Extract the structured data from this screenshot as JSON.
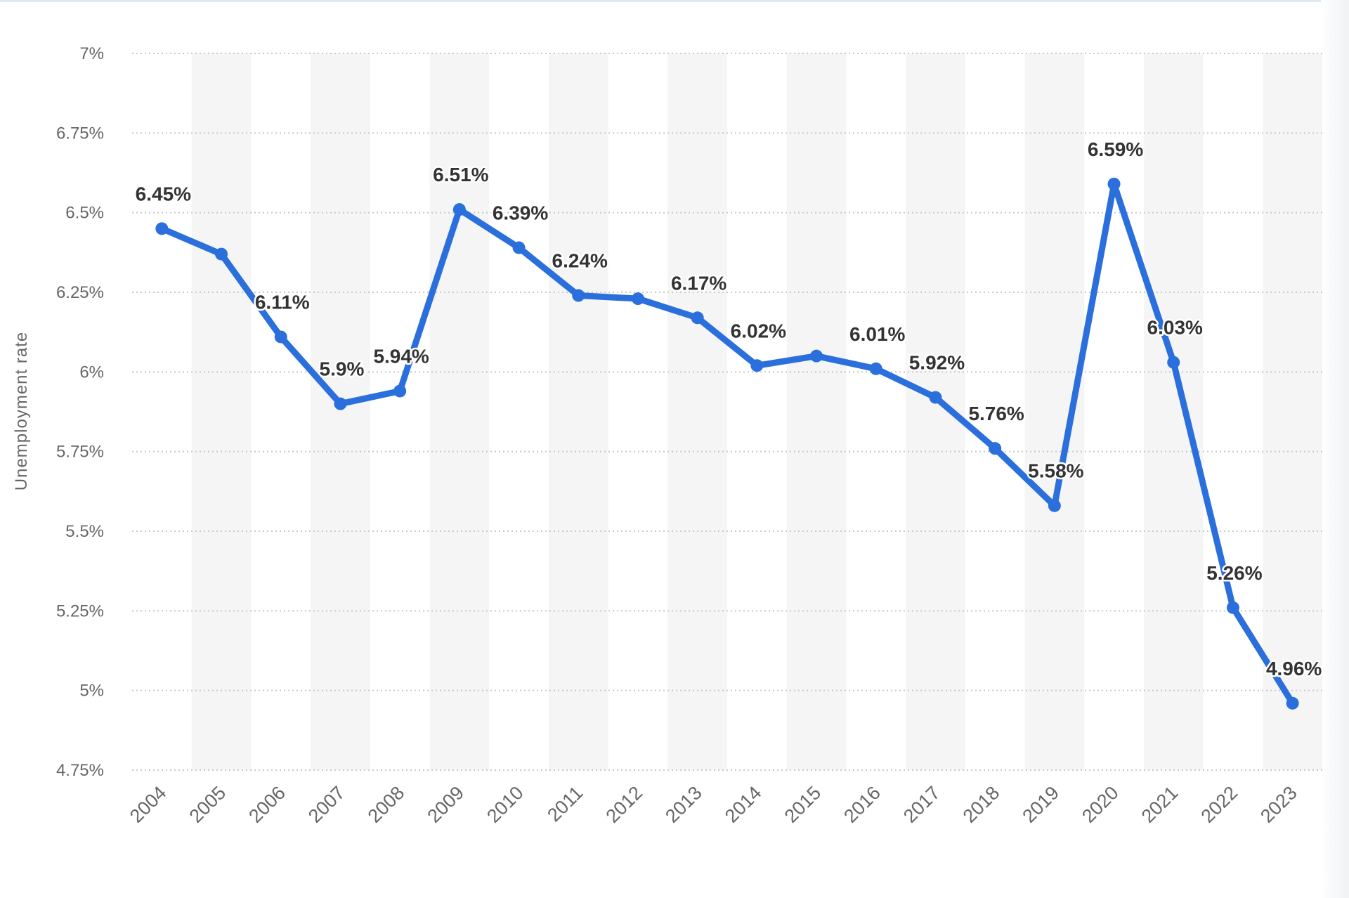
{
  "chart_data": {
    "type": "line",
    "ylabel": "Unemployment rate",
    "xlabel": "",
    "ylim": [
      4.75,
      7
    ],
    "yticks": [
      4.75,
      5,
      5.25,
      5.5,
      5.75,
      6,
      6.25,
      6.5,
      6.75,
      7
    ],
    "ytick_labels": [
      "4.75%",
      "5%",
      "5.25%",
      "5.5%",
      "5.75%",
      "6%",
      "6.25%",
      "6.5%",
      "6.75%",
      "7%"
    ],
    "categories": [
      "2004",
      "2005",
      "2006",
      "2007",
      "2008",
      "2009",
      "2010",
      "2011",
      "2012",
      "2013",
      "2014",
      "2015",
      "2016",
      "2017",
      "2018",
      "2019",
      "2020",
      "2021",
      "2022",
      "2023"
    ],
    "series": [
      {
        "values": [
          6.45,
          6.37,
          6.11,
          5.9,
          5.94,
          6.51,
          6.39,
          6.24,
          6.23,
          6.17,
          6.02,
          6.05,
          6.01,
          5.92,
          5.76,
          5.58,
          6.59,
          6.03,
          5.26,
          4.96
        ],
        "data_labels": [
          "6.45%",
          null,
          "6.11%",
          "5.9%",
          "5.94%",
          "6.51%",
          "6.39%",
          "6.24%",
          null,
          "6.17%",
          "6.02%",
          null,
          "6.01%",
          "5.92%",
          "5.76%",
          "5.58%",
          "6.59%",
          "6.03%",
          "5.26%",
          "4.96%"
        ]
      }
    ],
    "colors": {
      "line": "#2a6fdb",
      "grid": "#c8c8c8",
      "band": "#f5f5f6"
    },
    "grid": true,
    "legend": "none"
  }
}
